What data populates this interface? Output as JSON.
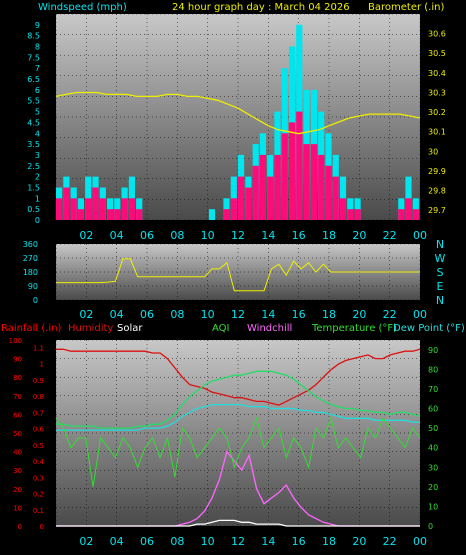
{
  "colors": {
    "background": "#000000",
    "wind": "#00e5ee",
    "gust": "#ff0a7a",
    "barometer": "#eeee00",
    "direction": "#eeee00",
    "rain": "#ff0000",
    "humidity": "#dd1010",
    "solar": "#ffffff",
    "aqi": "#33dd33",
    "windchill": "#ff66ff",
    "temperature": "#22dd66",
    "dewpoint": "#22dddd"
  },
  "header": {
    "windspeed_label": "Windspeed (mph)",
    "title": "24 hour graph day : March 04 2026",
    "barometer_label": "Barometer (.in)"
  },
  "legend": {
    "rainfall": "Rainfall (.in)",
    "humidity": "Humidity",
    "solar": "Solar",
    "aqi": "AQI",
    "windchill": "Windchill",
    "temperature": "Temperature (°F)",
    "dewpoint": "Dew Point (°F)"
  },
  "chart_data": [
    {
      "type": "line",
      "x_ticks": [
        "02",
        "04",
        "06",
        "08",
        "10",
        "12",
        "14",
        "16",
        "18",
        "20",
        "22",
        "00"
      ],
      "y_left_ticks": [
        "0",
        "0.5",
        "1",
        "1.5",
        "2",
        "2.5",
        "3",
        "3.5",
        "4",
        "4.5",
        "5",
        "5.5",
        "6",
        "6.5",
        "7",
        "7.5",
        "8",
        "8.5",
        "9"
      ],
      "y_right_ticks": [
        "29.7",
        "29.8",
        "29.9",
        "30",
        "30.1",
        "30.2",
        "30.3",
        "30.4",
        "30.5",
        "30.6"
      ],
      "ylim_left": [
        0,
        9.5
      ],
      "ylim_right": [
        29.65,
        30.7
      ],
      "series": [
        {
          "name": "Windspeed (mph)",
          "kind": "wind",
          "values": [
            1.5,
            2,
            1.5,
            1,
            2,
            2,
            1.5,
            1,
            1,
            1.5,
            2,
            1,
            0,
            0,
            0,
            0,
            0,
            0,
            0,
            0,
            0,
            0.5,
            0,
            1,
            2,
            3,
            2,
            3.5,
            4,
            3,
            5,
            7,
            8,
            9,
            6,
            6,
            5,
            4,
            3,
            2,
            1,
            1,
            0,
            0,
            0,
            0,
            0,
            1,
            2,
            1
          ]
        },
        {
          "name": "Gust",
          "kind": "gust",
          "values": [
            1,
            1.5,
            1,
            0.5,
            1,
            1.5,
            1,
            0.5,
            0.5,
            1,
            1,
            0.5,
            0,
            0,
            0,
            0,
            0,
            0,
            0,
            0,
            0,
            0,
            0,
            0.5,
            1,
            2,
            1.5,
            2.5,
            3,
            2,
            3,
            4,
            4.5,
            5,
            3.5,
            3.5,
            3,
            2.5,
            2,
            1,
            0.5,
            0.5,
            0,
            0,
            0,
            0,
            0,
            0.5,
            1,
            0.5
          ]
        },
        {
          "name": "Barometer (.in)",
          "kind": "barometer",
          "values": [
            30.28,
            30.29,
            30.3,
            30.3,
            30.3,
            30.29,
            30.29,
            30.29,
            30.28,
            30.28,
            30.28,
            30.29,
            30.29,
            30.28,
            30.28,
            30.27,
            30.26,
            30.24,
            30.22,
            30.19,
            30.16,
            30.13,
            30.11,
            30.1,
            30.09,
            30.1,
            30.11,
            30.13,
            30.15,
            30.17,
            30.18,
            30.19,
            30.19,
            30.19,
            30.19,
            30.18,
            30.17
          ]
        }
      ]
    },
    {
      "type": "line",
      "name": "Wind Direction",
      "x_ticks": [
        "02",
        "04",
        "06",
        "08",
        "10",
        "12",
        "14",
        "16",
        "18",
        "20",
        "22",
        "00"
      ],
      "y_left_ticks": [
        "360",
        "270",
        "180",
        "90",
        "0"
      ],
      "y_right_ticks": [
        "N",
        "W",
        "S",
        "E",
        "N"
      ],
      "ylim": [
        0,
        360
      ],
      "values": [
        112,
        112,
        112,
        112,
        112,
        112,
        112,
        115,
        120,
        265,
        265,
        150,
        150,
        150,
        150,
        150,
        150,
        150,
        150,
        150,
        150,
        200,
        200,
        240,
        60,
        60,
        60,
        60,
        60,
        200,
        230,
        160,
        250,
        200,
        240,
        180,
        230,
        180,
        180,
        180,
        180,
        180,
        180,
        180,
        180,
        180,
        180,
        180,
        180,
        180
      ]
    },
    {
      "type": "line",
      "x_ticks": [
        "02",
        "04",
        "06",
        "08",
        "10",
        "12",
        "14",
        "16",
        "18",
        "20",
        "22",
        "00"
      ],
      "y_left_ticks": [
        "0",
        "10",
        "20",
        "30",
        "40",
        "50",
        "60",
        "70",
        "80",
        "90",
        "100"
      ],
      "y_left2_ticks": [
        "0",
        "0.1",
        "0.2",
        "0.3",
        "0.4",
        "0.5",
        "0.6",
        "0.7",
        "0.8",
        "0.9",
        "1",
        "1.1"
      ],
      "y_right_ticks": [
        "0",
        "10",
        "20",
        "30",
        "40",
        "50",
        "60",
        "70",
        "80",
        "90"
      ],
      "ylim_left": [
        0,
        100
      ],
      "ylim_right": [
        0,
        95
      ],
      "series": [
        {
          "name": "Humidity",
          "kind": "humidity",
          "axis": "pct",
          "values": [
            95,
            95,
            94,
            94,
            94,
            94,
            94,
            94,
            94,
            94,
            94,
            94,
            94,
            93,
            93,
            90,
            85,
            80,
            76,
            75,
            74,
            72,
            71,
            70,
            69,
            69,
            68,
            67,
            67,
            66,
            65,
            67,
            69,
            71,
            73,
            76,
            80,
            84,
            87,
            89,
            90,
            91,
            92,
            90,
            90,
            92,
            93,
            94,
            94,
            95
          ]
        },
        {
          "name": "Temperature (°F)",
          "kind": "temperature",
          "axis": "deg",
          "values": [
            52,
            52,
            51,
            51,
            51,
            51,
            50,
            50,
            50,
            50,
            50,
            51,
            51,
            52,
            52,
            54,
            57,
            62,
            66,
            69,
            72,
            74,
            75,
            76,
            77,
            77,
            78,
            79,
            79,
            79,
            78,
            77,
            75,
            72,
            69,
            66,
            64,
            62,
            61,
            60,
            60,
            59,
            59,
            58,
            58,
            57,
            58,
            58,
            57,
            56
          ]
        },
        {
          "name": "Dew Point (°F)",
          "kind": "dewpoint",
          "axis": "deg",
          "values": [
            49,
            49,
            49,
            49,
            49,
            49,
            49,
            49,
            49,
            49,
            49,
            49,
            50,
            50,
            50,
            51,
            53,
            56,
            58,
            60,
            61,
            62,
            62,
            62,
            62,
            62,
            61,
            61,
            61,
            60,
            60,
            60,
            60,
            59,
            59,
            58,
            58,
            57,
            56,
            55,
            55,
            55,
            55,
            54,
            54,
            54,
            54,
            54,
            53,
            53
          ]
        },
        {
          "name": "Windchill",
          "kind": "windchill",
          "axis": "pct",
          "values": [
            0,
            0,
            0,
            0,
            0,
            0,
            0,
            0,
            0,
            0,
            0,
            0,
            0,
            0,
            0,
            0,
            0,
            1,
            2,
            4,
            8,
            15,
            25,
            40,
            35,
            30,
            38,
            20,
            12,
            15,
            18,
            22,
            15,
            10,
            6,
            4,
            2,
            1,
            0,
            0,
            0,
            0,
            0,
            0,
            0,
            0,
            0,
            0,
            0,
            0
          ]
        },
        {
          "name": "AQI",
          "kind": "aqi",
          "axis": "deg",
          "values": [
            55,
            50,
            40,
            45,
            45,
            20,
            45,
            40,
            35,
            45,
            40,
            30,
            40,
            45,
            35,
            45,
            25,
            50,
            45,
            35,
            40,
            45,
            50,
            45,
            30,
            40,
            45,
            55,
            40,
            45,
            50,
            35,
            45,
            40,
            30,
            50,
            45,
            55,
            40,
            45,
            40,
            35,
            50,
            45,
            55,
            50,
            45,
            40,
            50,
            45
          ]
        },
        {
          "name": "Solar",
          "kind": "solar",
          "axis": "pct",
          "values": [
            0,
            0,
            0,
            0,
            0,
            0,
            0,
            0,
            0,
            0,
            0,
            0,
            0,
            0,
            0,
            0,
            0,
            0,
            0,
            1,
            1,
            2,
            3,
            3,
            3,
            2,
            2,
            1,
            1,
            1,
            1,
            0,
            0,
            0,
            0,
            0,
            0,
            0,
            0,
            0,
            0,
            0,
            0,
            0,
            0,
            0,
            0,
            0,
            0,
            0
          ]
        }
      ]
    }
  ]
}
